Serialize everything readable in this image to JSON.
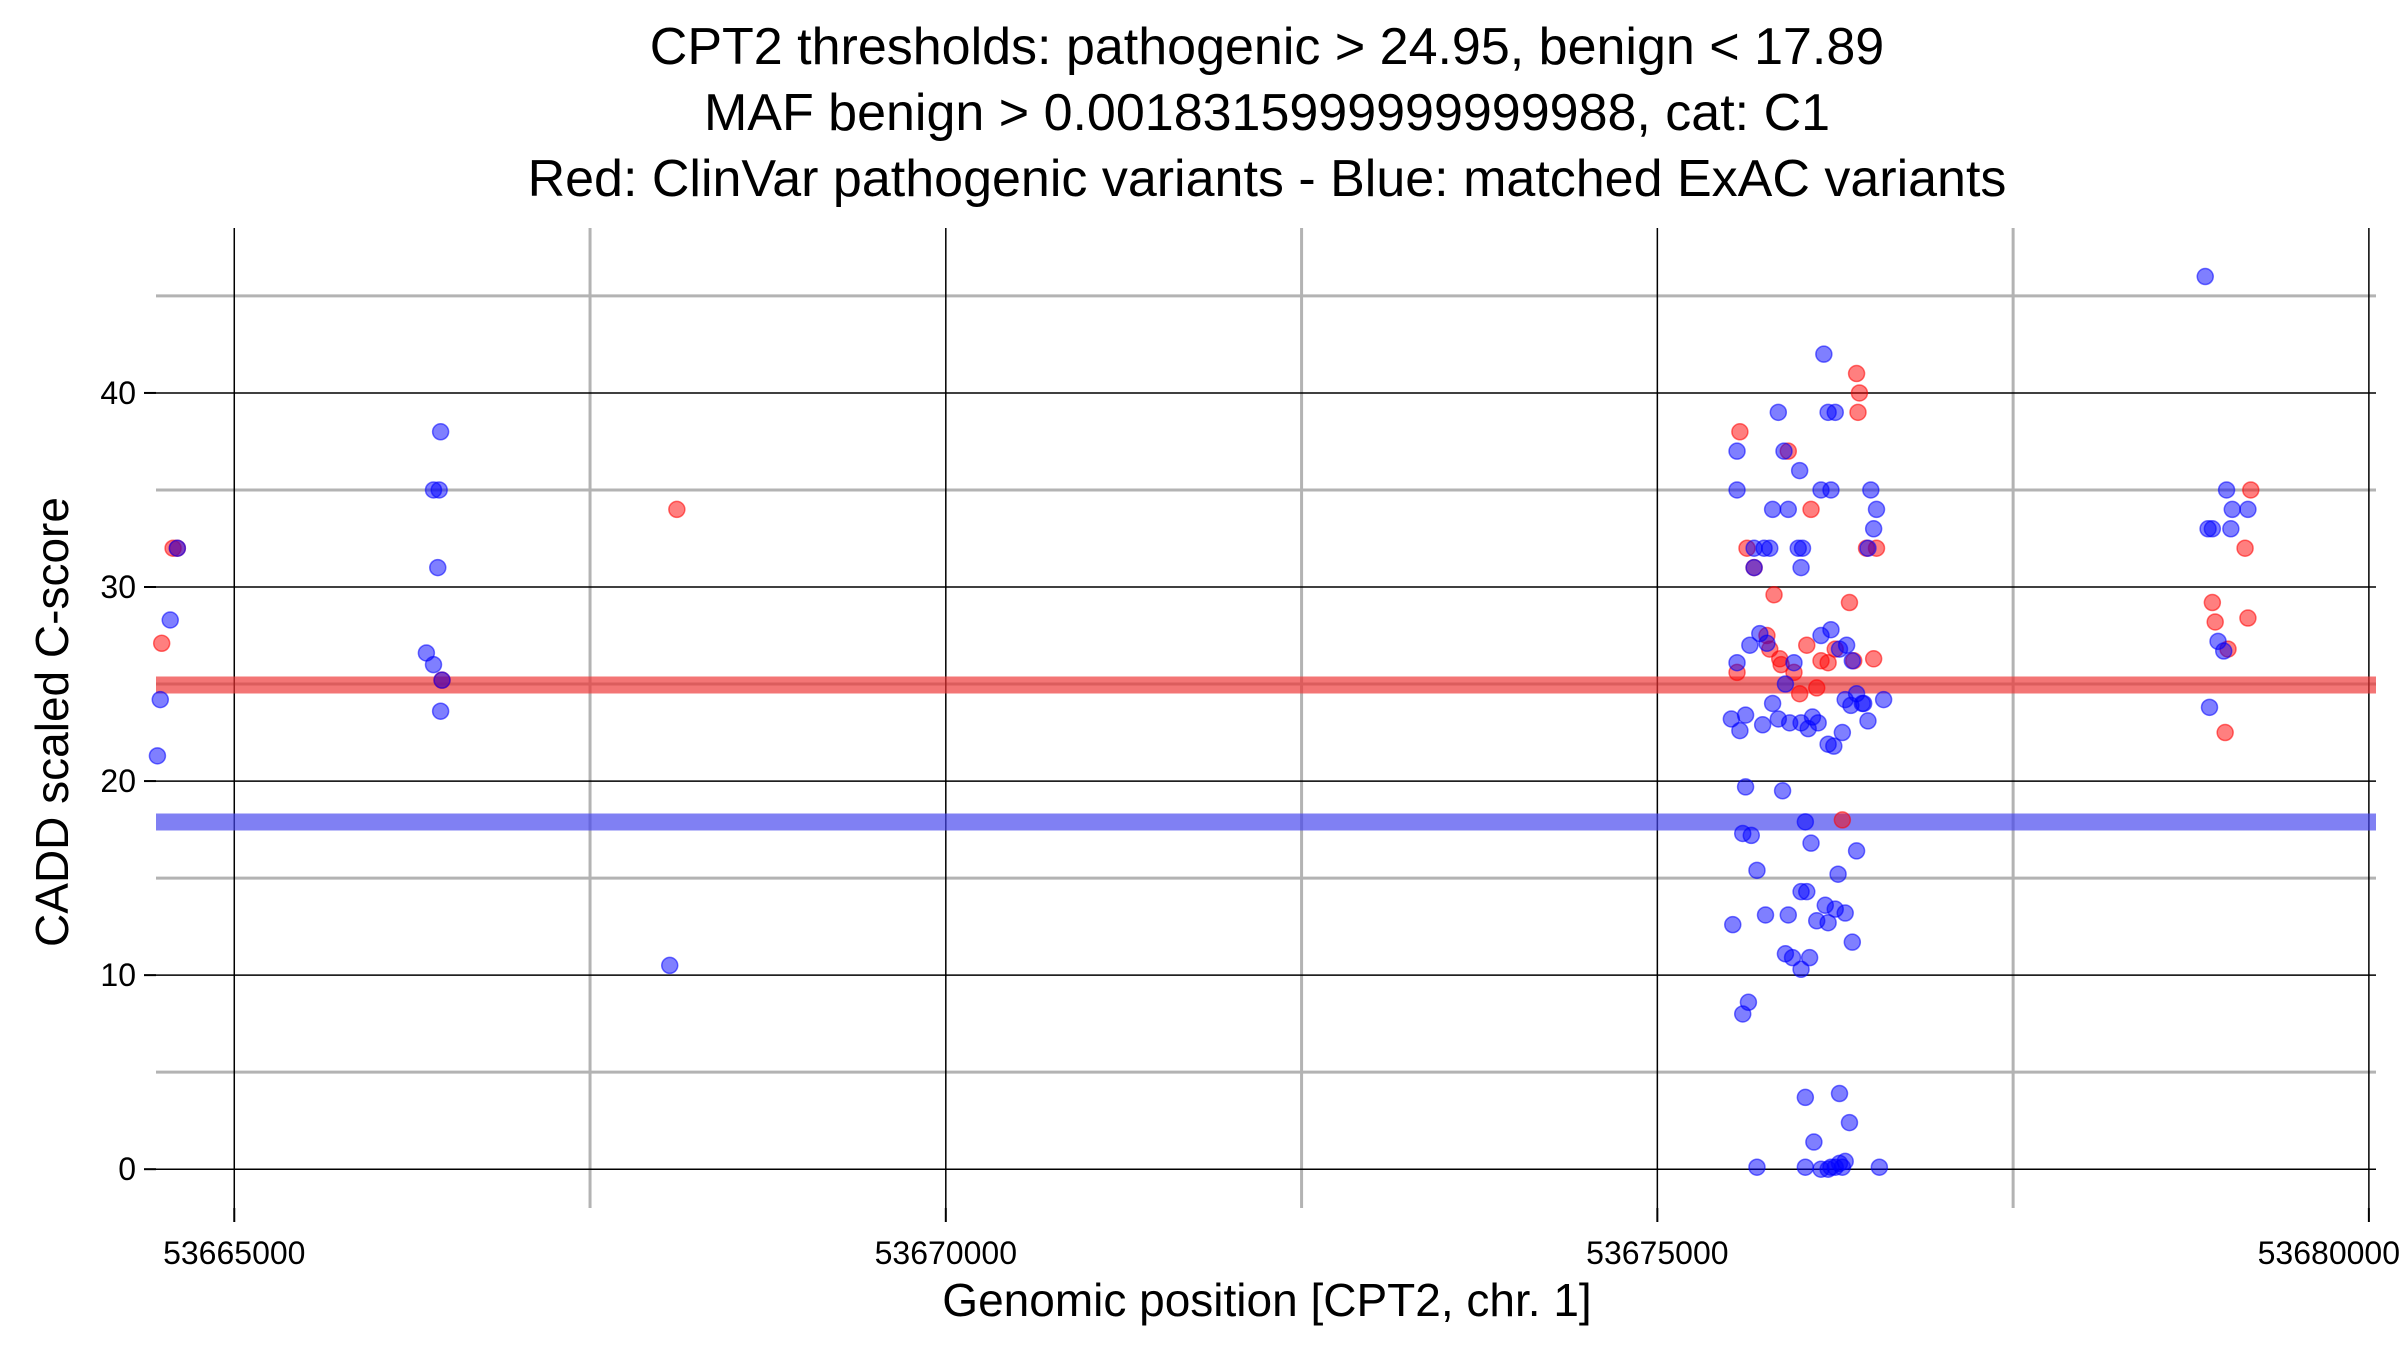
{
  "chart_data": {
    "type": "scatter",
    "title": [
      "CPT2 thresholds: pathogenic > 24.95, benign < 17.89",
      "MAF benign > 0.0018315999999999988, cat: C1",
      "Red: ClinVar pathogenic variants - Blue: matched ExAC variants"
    ],
    "xlabel": "Genomic position [CPT2, chr. 1]",
    "ylabel": "CADD scaled C-score",
    "xlim": [
      53664450,
      53680050
    ],
    "ylim": [
      -2,
      48.5
    ],
    "x_ticks": [
      53665000,
      53670000,
      53675000,
      53680000
    ],
    "x_tick_labels": [
      "53665000",
      "53670000",
      "53675000",
      "53680000"
    ],
    "y_ticks": [
      0,
      10,
      20,
      30,
      40
    ],
    "y_tick_labels": [
      "0",
      "10",
      "20",
      "30",
      "40"
    ],
    "x_minor_ticks": [
      53662500,
      53667500,
      53672500,
      53677500
    ],
    "y_minor_ticks": [
      5,
      15,
      25,
      35,
      45
    ],
    "grid": true,
    "thresholds": [
      {
        "name": "pathogenic",
        "value": 24.95,
        "color": "#ee3333"
      },
      {
        "name": "benign",
        "value": 17.89,
        "color": "#4444ee"
      }
    ],
    "colors": {
      "pathogenic": "#ff0000",
      "benign": "#0000ff"
    },
    "series": [
      {
        "name": "ClinVar pathogenic variants",
        "color": "#ff0000",
        "points": [
          [
            53664600,
            32.0
          ],
          [
            53664570,
            32.0
          ],
          [
            53664490,
            27.1
          ],
          [
            53666460,
            25.2
          ],
          [
            53668110,
            34.0
          ],
          [
            53675580,
            38.0
          ],
          [
            53675630,
            32.0
          ],
          [
            53675680,
            31.0
          ],
          [
            53675560,
            25.6
          ],
          [
            53675820,
            29.6
          ],
          [
            53675920,
            37.0
          ],
          [
            53676080,
            34.0
          ],
          [
            53675770,
            27.5
          ],
          [
            53675790,
            26.8
          ],
          [
            53675860,
            26.3
          ],
          [
            53675960,
            25.6
          ],
          [
            53676000,
            24.5
          ],
          [
            53676050,
            27.0
          ],
          [
            53676150,
            26.2
          ],
          [
            53676120,
            24.8
          ],
          [
            53676200,
            26.1
          ],
          [
            53676300,
            18.0
          ],
          [
            53676350,
            29.2
          ],
          [
            53676400,
            41.0
          ],
          [
            53676420,
            40.0
          ],
          [
            53676410,
            39.0
          ],
          [
            53676470,
            32.0
          ],
          [
            53676520,
            26.3
          ],
          [
            53676540,
            32.0
          ],
          [
            53676380,
            26.2
          ],
          [
            53676250,
            26.8
          ],
          [
            53675870,
            26.0
          ],
          [
            53678900,
            29.2
          ],
          [
            53678920,
            28.2
          ],
          [
            53678990,
            22.5
          ],
          [
            53679010,
            26.8
          ],
          [
            53679130,
            32.0
          ],
          [
            53679150,
            28.4
          ],
          [
            53679170,
            35.0
          ]
        ]
      },
      {
        "name": "matched ExAC variants",
        "color": "#0000ff",
        "points": [
          [
            53664600,
            32.0
          ],
          [
            53664550,
            28.3
          ],
          [
            53664480,
            24.2
          ],
          [
            53664460,
            21.3
          ],
          [
            53666450,
            38.0
          ],
          [
            53666440,
            35.0
          ],
          [
            53666400,
            35.0
          ],
          [
            53666430,
            31.0
          ],
          [
            53666350,
            26.6
          ],
          [
            53666400,
            26.0
          ],
          [
            53666460,
            25.2
          ],
          [
            53666450,
            23.6
          ],
          [
            53668060,
            10.5
          ],
          [
            53675850,
            39.0
          ],
          [
            53675890,
            37.0
          ],
          [
            53676170,
            42.0
          ],
          [
            53676200,
            39.0
          ],
          [
            53676250,
            39.0
          ],
          [
            53675560,
            37.0
          ],
          [
            53675560,
            35.0
          ],
          [
            53675810,
            34.0
          ],
          [
            53675920,
            34.0
          ],
          [
            53676000,
            36.0
          ],
          [
            53676150,
            35.0
          ],
          [
            53676220,
            35.0
          ],
          [
            53676500,
            35.0
          ],
          [
            53676540,
            34.0
          ],
          [
            53676520,
            33.0
          ],
          [
            53675680,
            32.0
          ],
          [
            53675750,
            32.0
          ],
          [
            53675790,
            32.0
          ],
          [
            53675990,
            32.0
          ],
          [
            53676020,
            32.0
          ],
          [
            53676480,
            32.0
          ],
          [
            53675680,
            31.0
          ],
          [
            53676010,
            31.0
          ],
          [
            53675560,
            26.1
          ],
          [
            53675720,
            27.6
          ],
          [
            53675770,
            27.1
          ],
          [
            53675650,
            27.0
          ],
          [
            53675900,
            25.0
          ],
          [
            53675960,
            26.1
          ],
          [
            53676150,
            27.5
          ],
          [
            53676220,
            27.8
          ],
          [
            53676280,
            26.8
          ],
          [
            53676330,
            27.0
          ],
          [
            53676370,
            26.2
          ],
          [
            53676450,
            24.0
          ],
          [
            53676480,
            23.1
          ],
          [
            53676590,
            24.2
          ],
          [
            53675520,
            23.2
          ],
          [
            53675580,
            22.6
          ],
          [
            53675620,
            23.4
          ],
          [
            53675740,
            22.9
          ],
          [
            53675810,
            24.0
          ],
          [
            53675850,
            23.2
          ],
          [
            53675930,
            23.0
          ],
          [
            53676010,
            23.0
          ],
          [
            53676060,
            22.7
          ],
          [
            53676090,
            23.3
          ],
          [
            53676130,
            23.0
          ],
          [
            53676200,
            21.9
          ],
          [
            53676240,
            21.8
          ],
          [
            53676300,
            22.5
          ],
          [
            53676320,
            24.2
          ],
          [
            53676360,
            23.9
          ],
          [
            53676400,
            24.5
          ],
          [
            53676440,
            24.0
          ],
          [
            53675620,
            19.7
          ],
          [
            53675880,
            19.5
          ],
          [
            53675600,
            17.3
          ],
          [
            53675660,
            17.2
          ],
          [
            53676040,
            17.9
          ],
          [
            53676080,
            16.8
          ],
          [
            53676270,
            15.2
          ],
          [
            53676400,
            16.4
          ],
          [
            53675700,
            15.4
          ],
          [
            53675530,
            12.6
          ],
          [
            53675760,
            13.1
          ],
          [
            53675920,
            13.1
          ],
          [
            53676010,
            14.3
          ],
          [
            53676050,
            14.3
          ],
          [
            53676180,
            13.6
          ],
          [
            53676250,
            13.4
          ],
          [
            53676320,
            13.2
          ],
          [
            53676200,
            12.7
          ],
          [
            53676120,
            12.8
          ],
          [
            53676370,
            11.7
          ],
          [
            53675900,
            11.1
          ],
          [
            53675950,
            10.9
          ],
          [
            53676010,
            10.3
          ],
          [
            53676070,
            10.9
          ],
          [
            53675640,
            8.6
          ],
          [
            53675600,
            8.0
          ],
          [
            53676040,
            3.7
          ],
          [
            53676280,
            3.9
          ],
          [
            53676350,
            2.4
          ],
          [
            53676100,
            1.4
          ],
          [
            53675700,
            0.1
          ],
          [
            53676040,
            0.1
          ],
          [
            53676200,
            0.0
          ],
          [
            53676250,
            0.1
          ],
          [
            53676280,
            0.3
          ],
          [
            53676320,
            0.4
          ],
          [
            53676300,
            0.1
          ],
          [
            53676220,
            0.1
          ],
          [
            53676560,
            0.1
          ],
          [
            53676150,
            0.0
          ],
          [
            53678850,
            46.0
          ],
          [
            53678870,
            33.0
          ],
          [
            53678900,
            33.0
          ],
          [
            53679000,
            35.0
          ],
          [
            53679040,
            34.0
          ],
          [
            53679030,
            33.0
          ],
          [
            53679150,
            34.0
          ],
          [
            53678940,
            27.2
          ],
          [
            53678980,
            26.7
          ],
          [
            53678880,
            23.8
          ]
        ]
      }
    ]
  }
}
